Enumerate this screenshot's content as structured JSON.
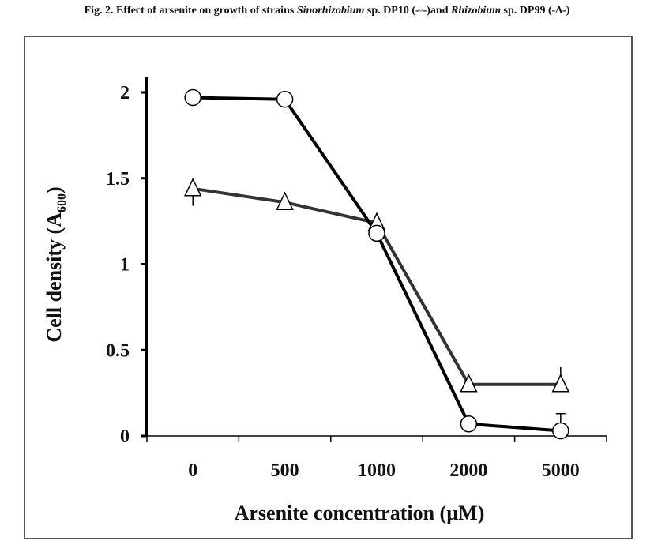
{
  "caption": {
    "prefix": "Fig. 2. Effect of arsenite on growth of strains ",
    "species1": "Sinorhizobium",
    "mid1": " sp. DP10 (-◦-)and ",
    "species2": "Rhizobium",
    "mid2": " sp. DP99 (-Δ-)"
  },
  "chart_data": {
    "type": "line",
    "title": "Fig. 2. Effect of arsenite on growth of strains Sinorhizobium sp. DP10 (-◦-)and Rhizobium sp. DP99 (-Δ-)",
    "xlabel": "Arsenite concentration (µM)",
    "ylabel": "Cell density (A600)",
    "ylabel_main": "Cell density (A",
    "ylabel_sub": "600",
    "ylabel_end": ")",
    "categories": [
      "0",
      "500",
      "1000",
      "2000",
      "5000"
    ],
    "ylim": [
      0,
      2.2
    ],
    "yticks": [
      0,
      0.5,
      1,
      1.5,
      2
    ],
    "ytick_labels": [
      "0",
      "0.5",
      "1",
      "1.5",
      "2"
    ],
    "grid": false,
    "legend": "none (described in caption)",
    "series": [
      {
        "name": "Sinorhizobium sp. DP10",
        "marker": "circle",
        "color": "#000000",
        "values": [
          1.97,
          1.96,
          1.18,
          0.07,
          0.03
        ],
        "error_up": [
          0,
          0,
          0,
          0,
          0.1
        ]
      },
      {
        "name": "Rhizobium sp. DP99",
        "marker": "triangle",
        "color": "#333333",
        "values": [
          1.44,
          1.36,
          1.24,
          0.3,
          0.3
        ],
        "error_down": [
          0.1,
          0,
          0,
          0,
          0
        ],
        "error_up": [
          0,
          0,
          0,
          0,
          0.1
        ]
      }
    ]
  }
}
